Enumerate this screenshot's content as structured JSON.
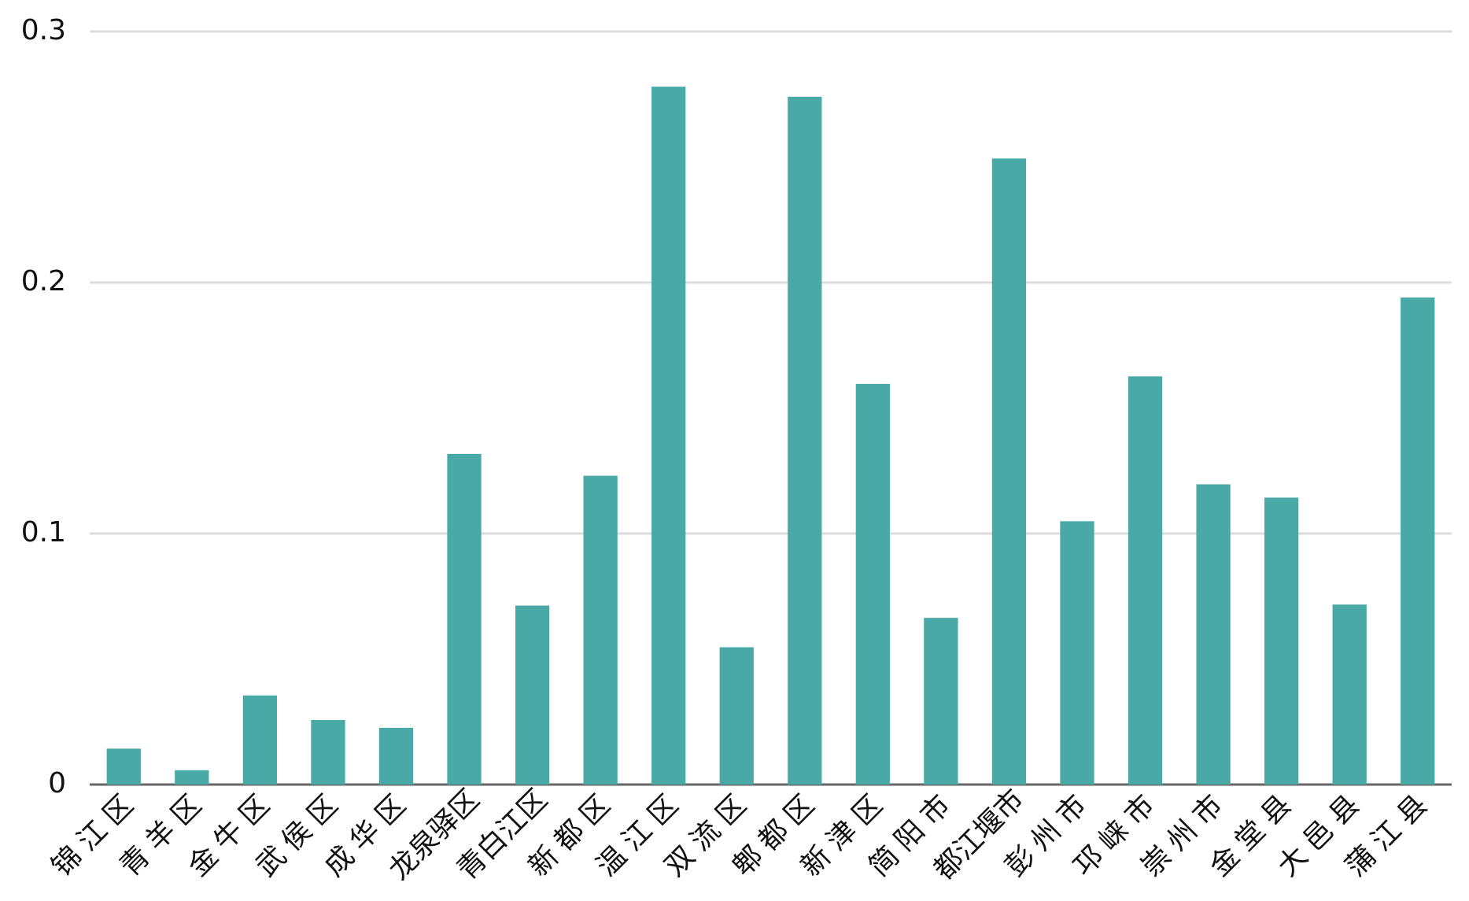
{
  "chart_data": {
    "type": "bar",
    "categories": [
      "锦江区",
      "青羊区",
      "金牛区",
      "武侯区",
      "成华区",
      "龙泉驿区",
      "青白江区",
      "新都区",
      "温江区",
      "双流区",
      "郫都区",
      "新津区",
      "简阳市",
      "都江堰市",
      "彭州市",
      "邛崃市",
      "崇州市",
      "金堂县",
      "大邑县",
      "蒲江县"
    ],
    "values": [
      0.0143,
      0.0057,
      0.0355,
      0.0257,
      0.0226,
      0.1317,
      0.0713,
      0.123,
      0.278,
      0.0547,
      0.274,
      0.1596,
      0.0664,
      0.2494,
      0.1049,
      0.1626,
      0.1196,
      0.1143,
      0.0717,
      0.194
    ],
    "color": "#48a9a6",
    "ylim": [
      0,
      0.3
    ],
    "yticks": [
      0,
      0.1,
      0.2,
      0.3
    ],
    "grid": true
  }
}
